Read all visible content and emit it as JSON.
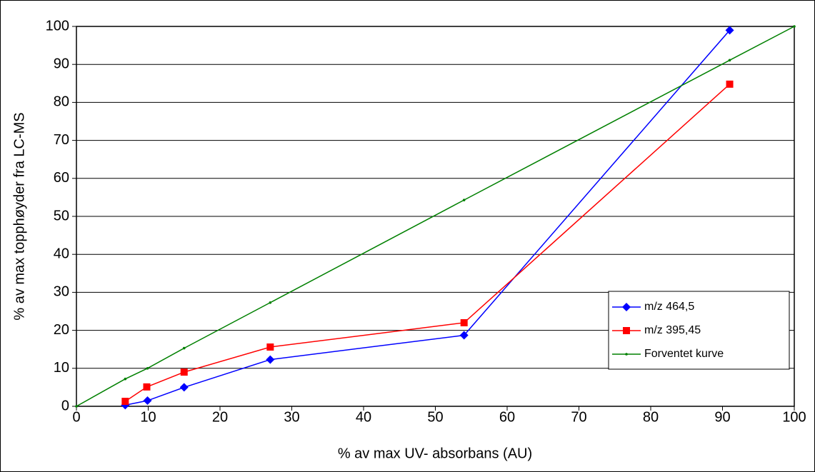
{
  "chart_data": {
    "type": "line",
    "xlabel": "% av max UV- absorbans (AU)",
    "ylabel": "% av max topphøyder fra LC-MS",
    "xlim": [
      0,
      100
    ],
    "xticks": [
      0,
      10,
      20,
      30,
      40,
      50,
      60,
      70,
      80,
      90,
      100
    ],
    "ylim": [
      0,
      100
    ],
    "yticks": [
      0,
      10,
      20,
      30,
      40,
      50,
      60,
      70,
      80,
      90,
      100
    ],
    "grid": true,
    "legend_position": "lower right",
    "series": [
      {
        "name": "m/z 464,5",
        "color": "#0000ff",
        "marker": "diamond",
        "x": [
          6.8,
          9.9,
          15,
          27,
          54,
          91
        ],
        "values": [
          0.3,
          1.5,
          5,
          12.3,
          18.7,
          99
        ]
      },
      {
        "name": "m/z 395,45",
        "color": "#ff0000",
        "marker": "square",
        "x": [
          6.8,
          9.8,
          15,
          27,
          54,
          91
        ],
        "values": [
          1.3,
          5.1,
          9,
          15.6,
          22,
          84.8
        ]
      },
      {
        "name": "Forventet kurve",
        "color": "#008000",
        "marker": "dot",
        "x": [
          0,
          6.8,
          9.9,
          15,
          27,
          54,
          91,
          100
        ],
        "values": [
          0,
          7.2,
          10,
          15.3,
          27.3,
          54.3,
          91.1,
          100
        ]
      }
    ]
  }
}
